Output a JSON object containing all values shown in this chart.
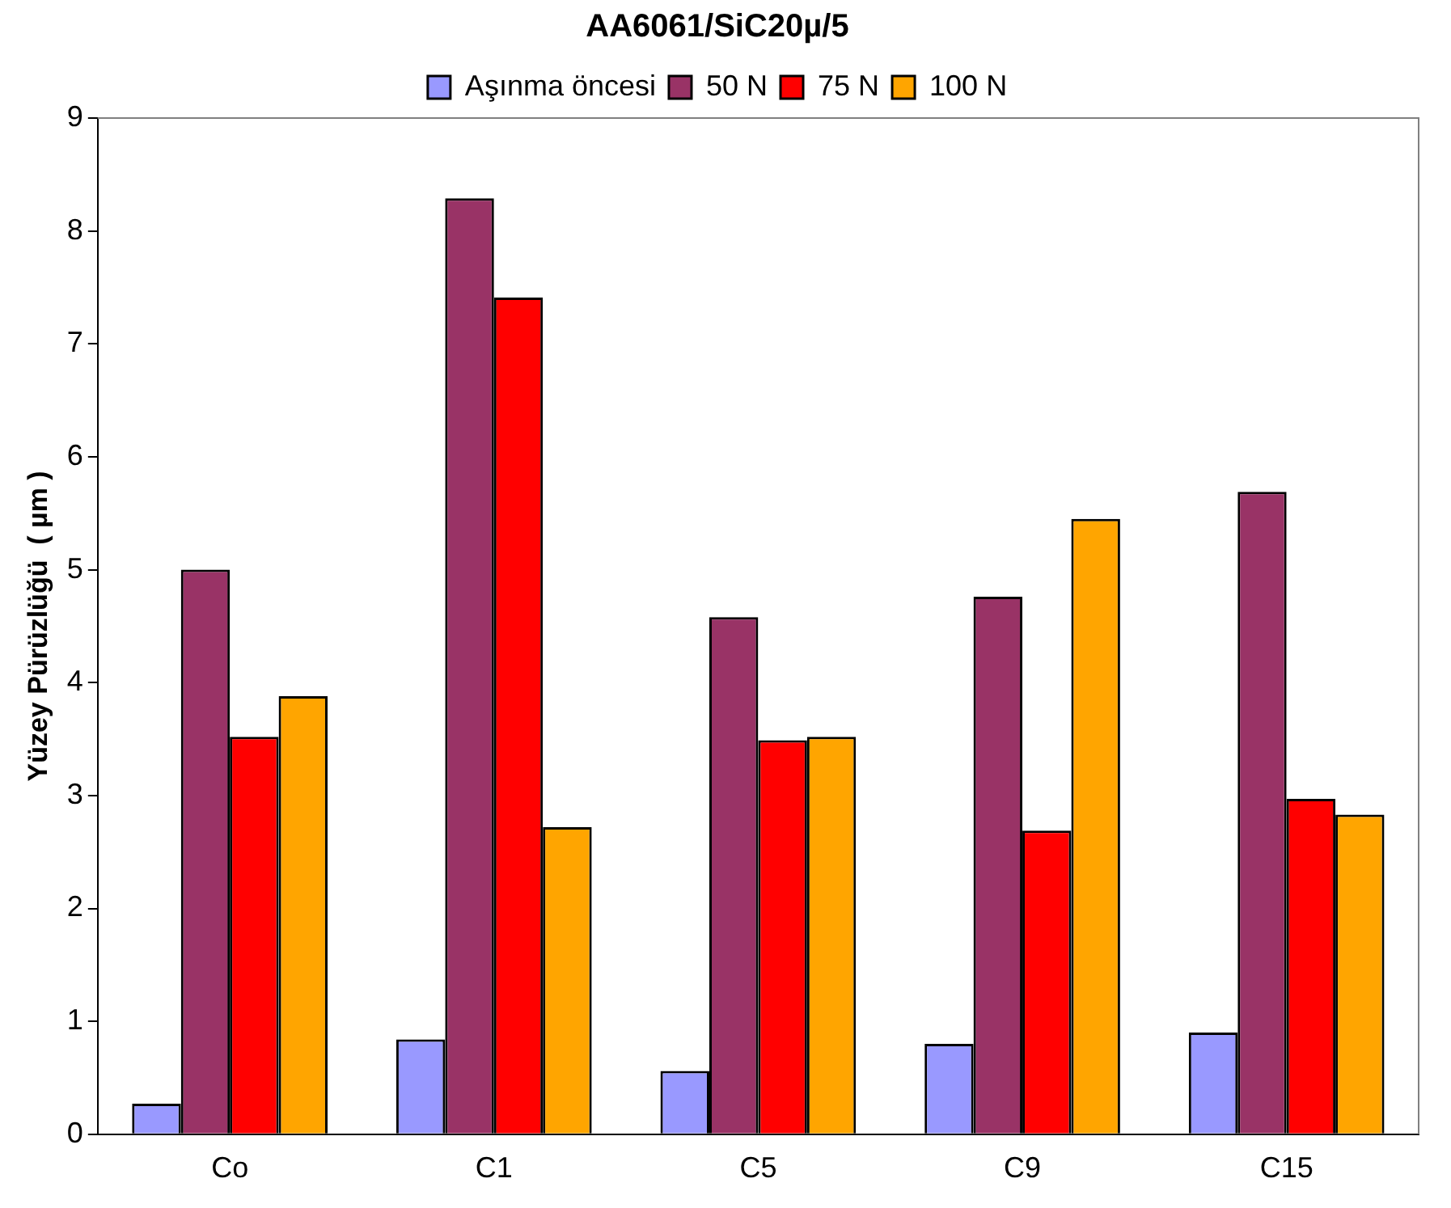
{
  "chart_data": {
    "type": "bar",
    "title": "AA6061/SiC20µ/5",
    "ylabel": "Yüzey Pürüzlüğü  ( µm )",
    "categories": [
      "Co",
      "C1",
      "C5",
      "C9",
      "C15"
    ],
    "series": [
      {
        "name": "Aşınma öncesi",
        "color": "#9999ff",
        "values": [
          0.27,
          0.84,
          0.56,
          0.8,
          0.9
        ]
      },
      {
        "name": "50 N",
        "color": "#993366",
        "values": [
          5.0,
          8.29,
          4.58,
          4.76,
          5.69
        ]
      },
      {
        "name": "75 N",
        "color": "#ff0000",
        "values": [
          3.52,
          7.41,
          3.49,
          2.69,
          2.97
        ]
      },
      {
        "name": "100 N",
        "color": "#ffa500",
        "values": [
          3.88,
          2.72,
          3.52,
          5.45,
          2.83
        ]
      }
    ],
    "ylim": [
      0,
      9
    ],
    "yticks": [
      0,
      1,
      2,
      3,
      4,
      5,
      6,
      7,
      8,
      9
    ],
    "grid": false,
    "legend": "top"
  }
}
